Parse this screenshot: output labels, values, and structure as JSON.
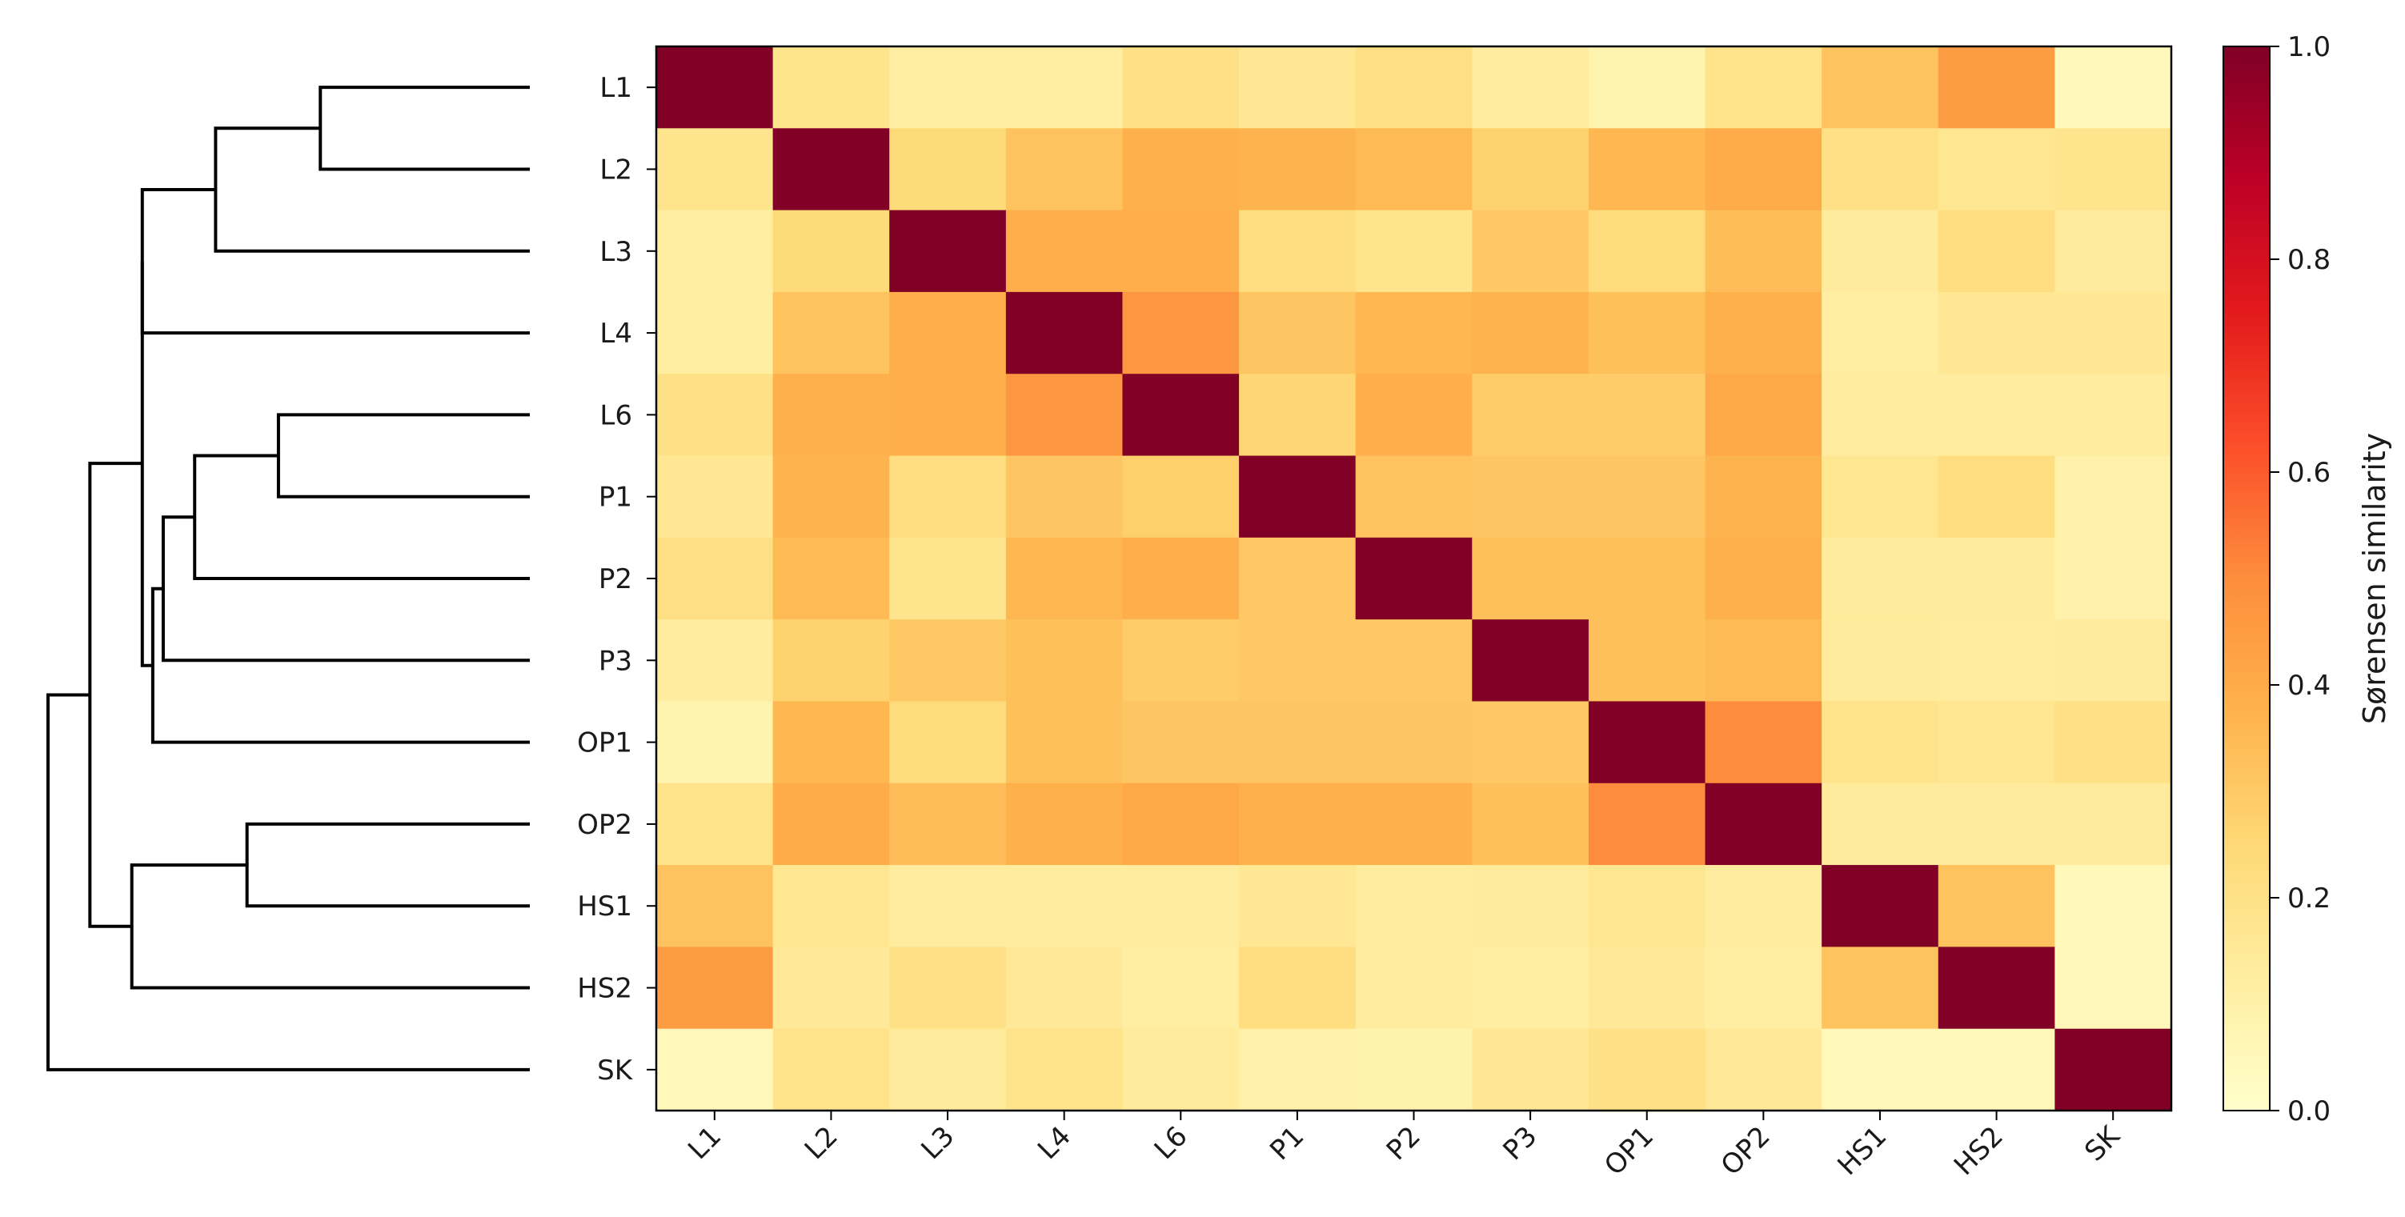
{
  "chart_data": {
    "type": "heatmap",
    "title": "",
    "rows": [
      "L1",
      "L2",
      "L3",
      "L4",
      "L6",
      "P1",
      "P2",
      "P3",
      "OP1",
      "OP2",
      "HS1",
      "HS2",
      "SK"
    ],
    "columns": [
      "L1",
      "L2",
      "L3",
      "L4",
      "L6",
      "P1",
      "P2",
      "P3",
      "OP1",
      "OP2",
      "HS1",
      "HS2",
      "SK"
    ],
    "values": [
      [
        1.0,
        0.18,
        0.12,
        0.12,
        0.2,
        0.16,
        0.21,
        0.13,
        0.08,
        0.19,
        0.32,
        0.45,
        0.05
      ],
      [
        0.18,
        1.0,
        0.24,
        0.32,
        0.38,
        0.37,
        0.35,
        0.27,
        0.36,
        0.4,
        0.2,
        0.17,
        0.18
      ],
      [
        0.12,
        0.24,
        1.0,
        0.39,
        0.39,
        0.22,
        0.18,
        0.3,
        0.23,
        0.34,
        0.14,
        0.22,
        0.14
      ],
      [
        0.12,
        0.32,
        0.39,
        1.0,
        0.47,
        0.31,
        0.36,
        0.37,
        0.33,
        0.38,
        0.12,
        0.16,
        0.16
      ],
      [
        0.2,
        0.38,
        0.39,
        0.47,
        1.0,
        0.26,
        0.39,
        0.29,
        0.29,
        0.41,
        0.13,
        0.13,
        0.13
      ],
      [
        0.16,
        0.37,
        0.22,
        0.31,
        0.28,
        1.0,
        0.32,
        0.31,
        0.31,
        0.37,
        0.17,
        0.22,
        0.1
      ],
      [
        0.21,
        0.35,
        0.18,
        0.36,
        0.39,
        0.3,
        1.0,
        0.33,
        0.33,
        0.38,
        0.14,
        0.14,
        0.1
      ],
      [
        0.13,
        0.27,
        0.3,
        0.33,
        0.29,
        0.3,
        0.3,
        1.0,
        0.33,
        0.35,
        0.14,
        0.13,
        0.14
      ],
      [
        0.08,
        0.36,
        0.23,
        0.33,
        0.31,
        0.31,
        0.31,
        0.3,
        1.0,
        0.5,
        0.19,
        0.17,
        0.2
      ],
      [
        0.19,
        0.4,
        0.34,
        0.38,
        0.41,
        0.38,
        0.38,
        0.33,
        0.5,
        1.0,
        0.14,
        0.14,
        0.14
      ],
      [
        0.32,
        0.17,
        0.13,
        0.13,
        0.13,
        0.16,
        0.13,
        0.14,
        0.17,
        0.13,
        1.0,
        0.32,
        0.05
      ],
      [
        0.45,
        0.15,
        0.2,
        0.15,
        0.12,
        0.22,
        0.13,
        0.12,
        0.15,
        0.12,
        0.32,
        1.0,
        0.05
      ],
      [
        0.05,
        0.19,
        0.14,
        0.19,
        0.14,
        0.1,
        0.09,
        0.16,
        0.2,
        0.15,
        0.05,
        0.05,
        1.0
      ]
    ],
    "colorbar": {
      "label": "Sørensen similarity",
      "range": [
        0.0,
        1.0
      ],
      "ticks": [
        "0.0",
        "0.2",
        "0.4",
        "0.6",
        "0.8",
        "1.0"
      ],
      "colormap": "YlOrRd"
    },
    "dendrogram": {
      "orientation": "left",
      "merges": [
        {
          "a": "L1",
          "b": "L2",
          "height": 0.2
        },
        {
          "a": "L1,L2",
          "b": "L3",
          "height": 0.3
        },
        {
          "a": "L6",
          "b": "P1",
          "height": 0.24
        },
        {
          "a": "L6,P1",
          "b": "P2",
          "height": 0.32
        },
        {
          "a": "L6,P1,P2",
          "b": "P3",
          "height": 0.35
        },
        {
          "a": "L6,P1,P2,P3",
          "b": "OP1",
          "height": 0.36
        },
        {
          "a": "L1,L2,L3",
          "b": "L4",
          "height": 0.37
        },
        {
          "a": "L1-L4",
          "b": "L6-OP1",
          "height": 0.37
        },
        {
          "a": "OP2",
          "b": "HS1",
          "height": 0.27
        },
        {
          "a": "OP2,HS1",
          "b": "HS2",
          "height": 0.38
        },
        {
          "a": "L1-OP1",
          "b": "OP2,HS1,HS2",
          "height": 0.42
        },
        {
          "a": "L1-HS2",
          "b": "SK",
          "height": 0.46
        }
      ]
    }
  }
}
